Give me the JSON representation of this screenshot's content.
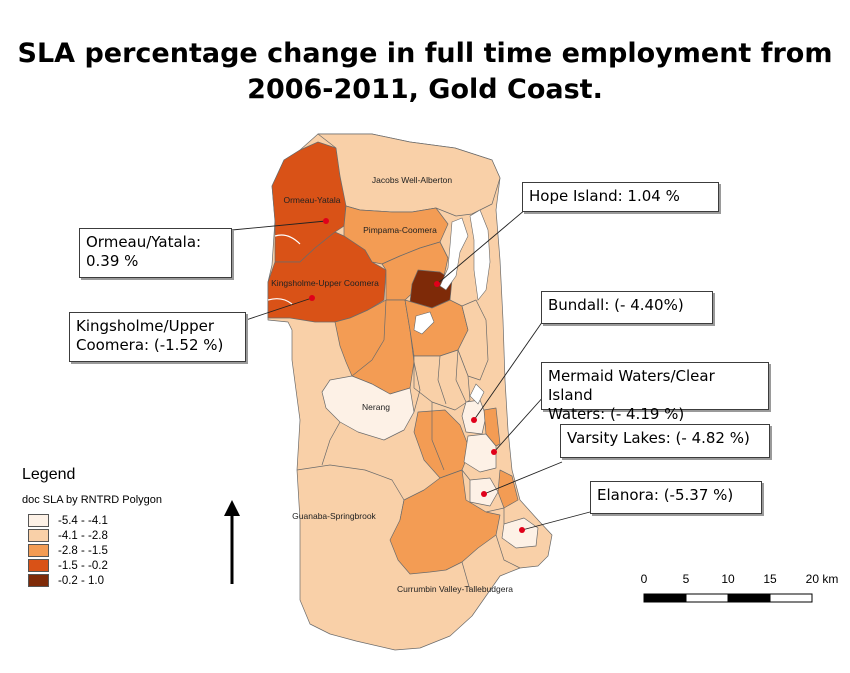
{
  "title": {
    "line1": "SLA percentage change in full time employment from",
    "line2": "2006-2011, Gold Coast."
  },
  "legend": {
    "title": "Legend",
    "subtitle": "doc SLA by RNTRD Polygon",
    "classes": [
      {
        "label": "-5.4 - -4.1",
        "color": "#fdf1e6"
      },
      {
        "label": "-4.1 - -2.8",
        "color": "#f9d0a8"
      },
      {
        "label": "-2.8 - -1.5",
        "color": "#f39c54"
      },
      {
        "label": "-1.5 - -0.2",
        "color": "#d95217"
      },
      {
        "label": "-0.2 - 1.0",
        "color": "#7e2a08"
      }
    ]
  },
  "map_labels": {
    "jacobs_well": "Jacobs Well-Alberton",
    "ormeau_yatala": "Ormeau-Yatala",
    "pimpama": "Pimpama-Coomera",
    "kingsholme": "Kingsholme-Upper Coomera",
    "nerang": "Nerang",
    "guanaba": "Guanaba-Springbrook",
    "currumbin": "Currumbin Valley-Tallebudgera"
  },
  "callouts": {
    "hope_island": "Hope Island: 1.04 %",
    "ormeau_line1": "Ormeau/Yatala:",
    "ormeau_line2": "0.39 %",
    "kingsholme_line1": "Kingsholme/Upper",
    "kingsholme_line2": "Coomera: (-1.52 %)",
    "bundall": "Bundall: (- 4.40%)",
    "mermaid_line1": "Mermaid Waters/Clear Island",
    "mermaid_line2": "Waters: (- 4.19 %)",
    "varsity": "Varsity Lakes: (- 4.82 %)",
    "elanora": "Elanora: (-5.37 %)"
  },
  "scale_bar": {
    "ticks": [
      "0",
      "5",
      "10",
      "15",
      "20 km"
    ]
  },
  "north_arrow": "north-arrow",
  "marker_color": "#e0001a"
}
